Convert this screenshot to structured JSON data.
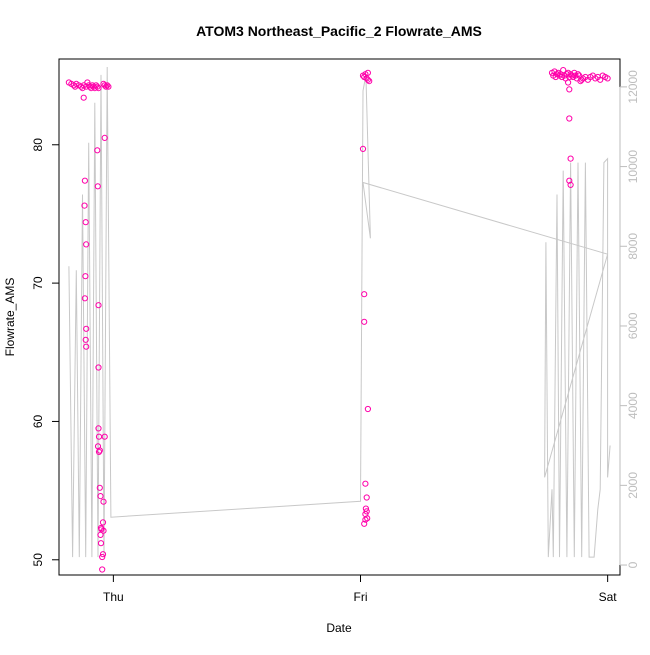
{
  "chart_data": {
    "type": "scatter",
    "title": "ATOM3 Northeast_Pacific_2 Flowrate_AMS",
    "xlabel": "Date",
    "ylabel": "Flowrate_AMS",
    "x_ticks": [
      {
        "label": "Thu",
        "value": 0
      },
      {
        "label": "Fri",
        "value": 1
      },
      {
        "label": "Sat",
        "value": 2
      }
    ],
    "xlim": [
      -0.22,
      2.05
    ],
    "y_ticks": [
      50,
      60,
      70,
      80
    ],
    "ylim": [
      48.9,
      86.2
    ],
    "y2_ticks": [
      0,
      2000,
      4000,
      6000,
      8000,
      10000,
      12000
    ],
    "y2lim": [
      -250,
      12700
    ],
    "grid": false,
    "colors": {
      "points": "#ff00aa",
      "line": "#c8c8c8",
      "right_axis": "#bdbdbd"
    },
    "series": [
      {
        "marker": "circle",
        "points": [
          {
            "x": -0.18,
            "y": 84.5
          },
          {
            "x": -0.17,
            "y": 84.4
          },
          {
            "x": -0.16,
            "y": 84.3
          },
          {
            "x": -0.155,
            "y": 84.2
          },
          {
            "x": -0.15,
            "y": 84.4
          },
          {
            "x": -0.14,
            "y": 84.3
          },
          {
            "x": -0.13,
            "y": 84.2
          },
          {
            "x": -0.125,
            "y": 84.1
          },
          {
            "x": -0.12,
            "y": 84.3
          },
          {
            "x": -0.11,
            "y": 84.2
          },
          {
            "x": -0.105,
            "y": 84.5
          },
          {
            "x": -0.1,
            "y": 84.3
          },
          {
            "x": -0.095,
            "y": 84.2
          },
          {
            "x": -0.09,
            "y": 84.1
          },
          {
            "x": -0.085,
            "y": 84.3
          },
          {
            "x": -0.08,
            "y": 84.2
          },
          {
            "x": -0.075,
            "y": 84.1
          },
          {
            "x": -0.07,
            "y": 84.3
          },
          {
            "x": -0.065,
            "y": 84.2
          },
          {
            "x": -0.06,
            "y": 84.1
          },
          {
            "x": -0.04,
            "y": 84.4
          },
          {
            "x": -0.035,
            "y": 84.3
          },
          {
            "x": -0.03,
            "y": 84.2
          },
          {
            "x": -0.025,
            "y": 84.3
          },
          {
            "x": -0.02,
            "y": 84.2
          },
          {
            "x": -0.12,
            "y": 83.4
          },
          {
            "x": -0.115,
            "y": 77.4
          },
          {
            "x": -0.117,
            "y": 75.6
          },
          {
            "x": -0.112,
            "y": 74.4
          },
          {
            "x": -0.11,
            "y": 72.8
          },
          {
            "x": -0.113,
            "y": 70.5
          },
          {
            "x": -0.115,
            "y": 68.9
          },
          {
            "x": -0.11,
            "y": 66.7
          },
          {
            "x": -0.112,
            "y": 65.9
          },
          {
            "x": -0.11,
            "y": 65.4
          },
          {
            "x": -0.065,
            "y": 79.6
          },
          {
            "x": -0.063,
            "y": 77.0
          },
          {
            "x": -0.06,
            "y": 68.4
          },
          {
            "x": -0.06,
            "y": 63.9
          },
          {
            "x": -0.06,
            "y": 59.5
          },
          {
            "x": -0.058,
            "y": 58.9
          },
          {
            "x": -0.062,
            "y": 58.2
          },
          {
            "x": -0.058,
            "y": 57.8
          },
          {
            "x": -0.055,
            "y": 57.9
          },
          {
            "x": -0.055,
            "y": 55.2
          },
          {
            "x": -0.052,
            "y": 54.6
          },
          {
            "x": -0.05,
            "y": 52.3
          },
          {
            "x": -0.048,
            "y": 52.2
          },
          {
            "x": -0.052,
            "y": 51.8
          },
          {
            "x": -0.05,
            "y": 51.2
          },
          {
            "x": -0.045,
            "y": 50.2
          },
          {
            "x": -0.042,
            "y": 50.4
          },
          {
            "x": -0.045,
            "y": 49.3
          },
          {
            "x": -0.04,
            "y": 52.1
          },
          {
            "x": -0.042,
            "y": 52.7
          },
          {
            "x": -0.04,
            "y": 54.2
          },
          {
            "x": -0.035,
            "y": 58.9
          },
          {
            "x": -0.035,
            "y": 80.5
          },
          {
            "x": 1.01,
            "y": 85.0
          },
          {
            "x": 1.015,
            "y": 84.9
          },
          {
            "x": 1.02,
            "y": 85.1
          },
          {
            "x": 1.025,
            "y": 84.8
          },
          {
            "x": 1.03,
            "y": 85.2
          },
          {
            "x": 1.035,
            "y": 84.6
          },
          {
            "x": 1.03,
            "y": 84.7
          },
          {
            "x": 1.01,
            "y": 79.7
          },
          {
            "x": 1.015,
            "y": 69.2
          },
          {
            "x": 1.015,
            "y": 67.2
          },
          {
            "x": 1.03,
            "y": 60.9
          },
          {
            "x": 1.02,
            "y": 55.5
          },
          {
            "x": 1.025,
            "y": 54.5
          },
          {
            "x": 1.022,
            "y": 53.7
          },
          {
            "x": 1.025,
            "y": 53.5
          },
          {
            "x": 1.02,
            "y": 53.3
          },
          {
            "x": 1.027,
            "y": 53.0
          },
          {
            "x": 1.02,
            "y": 52.9
          },
          {
            "x": 1.015,
            "y": 52.6
          },
          {
            "x": 1.775,
            "y": 85.2
          },
          {
            "x": 1.78,
            "y": 85.0
          },
          {
            "x": 1.785,
            "y": 85.3
          },
          {
            "x": 1.79,
            "y": 84.9
          },
          {
            "x": 1.795,
            "y": 85.1
          },
          {
            "x": 1.8,
            "y": 85.2
          },
          {
            "x": 1.805,
            "y": 85.0
          },
          {
            "x": 1.81,
            "y": 85.1
          },
          {
            "x": 1.815,
            "y": 84.9
          },
          {
            "x": 1.82,
            "y": 85.4
          },
          {
            "x": 1.825,
            "y": 85.0
          },
          {
            "x": 1.83,
            "y": 84.8
          },
          {
            "x": 1.835,
            "y": 85.1
          },
          {
            "x": 1.84,
            "y": 85.2
          },
          {
            "x": 1.845,
            "y": 84.9
          },
          {
            "x": 1.85,
            "y": 85.1
          },
          {
            "x": 1.855,
            "y": 85.0
          },
          {
            "x": 1.86,
            "y": 84.9
          },
          {
            "x": 1.865,
            "y": 85.2
          },
          {
            "x": 1.87,
            "y": 85.0
          },
          {
            "x": 1.875,
            "y": 84.8
          },
          {
            "x": 1.88,
            "y": 85.1
          },
          {
            "x": 1.885,
            "y": 85.0
          },
          {
            "x": 1.89,
            "y": 84.6
          },
          {
            "x": 1.895,
            "y": 84.7
          },
          {
            "x": 1.9,
            "y": 84.8
          },
          {
            "x": 1.91,
            "y": 84.9
          },
          {
            "x": 1.92,
            "y": 84.7
          },
          {
            "x": 1.93,
            "y": 84.9
          },
          {
            "x": 1.94,
            "y": 85.0
          },
          {
            "x": 1.95,
            "y": 84.8
          },
          {
            "x": 1.96,
            "y": 84.9
          },
          {
            "x": 1.97,
            "y": 84.7
          },
          {
            "x": 1.98,
            "y": 85.0
          },
          {
            "x": 1.99,
            "y": 84.9
          },
          {
            "x": 2.0,
            "y": 84.8
          },
          {
            "x": 1.84,
            "y": 84.5
          },
          {
            "x": 1.845,
            "y": 84.0
          },
          {
            "x": 1.845,
            "y": 81.9
          },
          {
            "x": 1.85,
            "y": 79.0
          },
          {
            "x": 1.845,
            "y": 77.4
          },
          {
            "x": 1.85,
            "y": 77.1
          }
        ]
      },
      {
        "axis": "right",
        "marker": "line",
        "points": [
          {
            "x": -0.18,
            "y": 7500
          },
          {
            "x": -0.165,
            "y": 200
          },
          {
            "x": -0.15,
            "y": 7400
          },
          {
            "x": -0.138,
            "y": 200
          },
          {
            "x": -0.125,
            "y": 9300
          },
          {
            "x": -0.112,
            "y": 200
          },
          {
            "x": -0.1,
            "y": 10600
          },
          {
            "x": -0.087,
            "y": 200
          },
          {
            "x": -0.075,
            "y": 11600
          },
          {
            "x": -0.062,
            "y": 200
          },
          {
            "x": -0.05,
            "y": 12300
          },
          {
            "x": -0.038,
            "y": 200
          },
          {
            "x": -0.025,
            "y": 12500
          },
          {
            "x": -0.01,
            "y": 1200
          },
          {
            "x": 1.0,
            "y": 1600
          },
          {
            "x": 1.01,
            "y": 11900
          },
          {
            "x": 1.022,
            "y": 12300
          },
          {
            "x": 1.04,
            "y": 8200
          },
          {
            "x": 1.01,
            "y": 9600
          },
          {
            "x": 2.0,
            "y": 7800
          },
          {
            "x": 1.745,
            "y": 2200
          },
          {
            "x": 1.75,
            "y": 8100
          },
          {
            "x": 1.76,
            "y": 200
          },
          {
            "x": 1.775,
            "y": 1900
          },
          {
            "x": 1.78,
            "y": 200
          },
          {
            "x": 1.795,
            "y": 9300
          },
          {
            "x": 1.805,
            "y": 200
          },
          {
            "x": 1.82,
            "y": 9900
          },
          {
            "x": 1.835,
            "y": 200
          },
          {
            "x": 1.85,
            "y": 10100
          },
          {
            "x": 1.865,
            "y": 200
          },
          {
            "x": 1.88,
            "y": 10100
          },
          {
            "x": 1.895,
            "y": 200
          },
          {
            "x": 1.91,
            "y": 10100
          },
          {
            "x": 1.925,
            "y": 200
          },
          {
            "x": 1.945,
            "y": 200
          },
          {
            "x": 1.96,
            "y": 1400
          },
          {
            "x": 1.97,
            "y": 1900
          },
          {
            "x": 1.985,
            "y": 10100
          },
          {
            "x": 2.0,
            "y": 10200
          },
          {
            "x": 2.0,
            "y": 2200
          },
          {
            "x": 2.01,
            "y": 3000
          }
        ]
      }
    ]
  }
}
